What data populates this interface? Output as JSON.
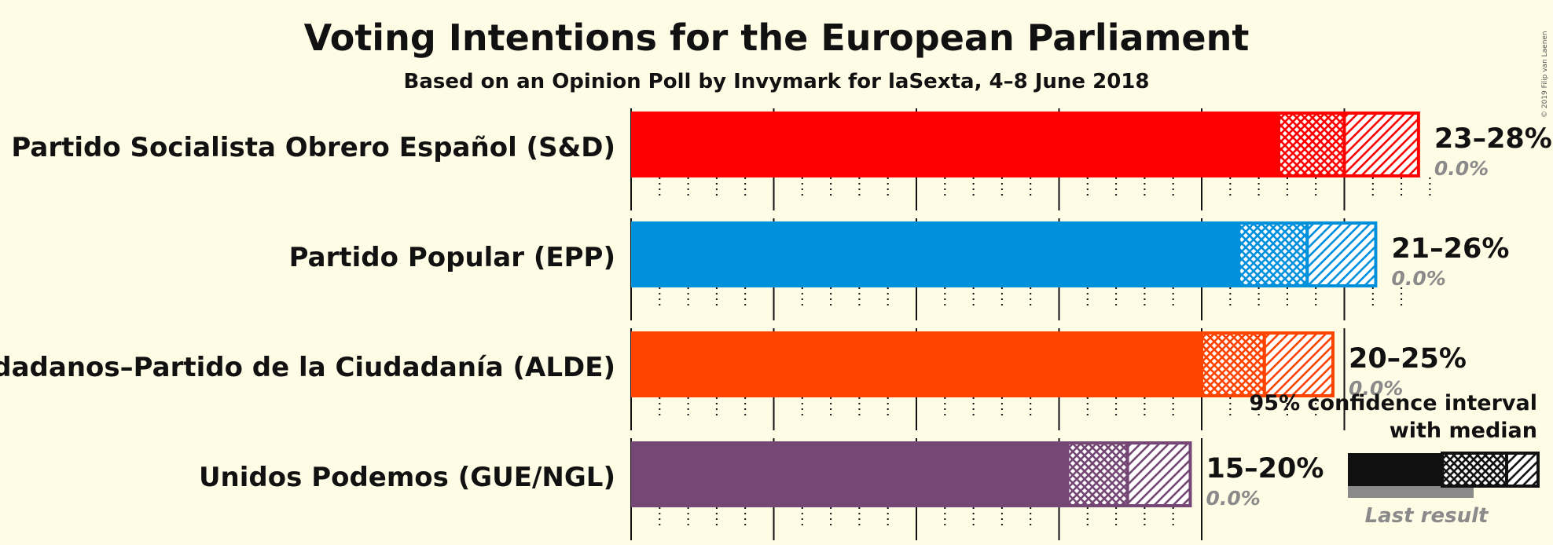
{
  "title": "Voting Intentions for the European Parliament",
  "subtitle": "Based on an Opinion Poll by Invymark for laSexta, 4–8 June 2018",
  "copyright": "© 2019 Filip van Laenen",
  "chart_data": {
    "type": "bar",
    "orientation": "horizontal",
    "title": "Voting Intentions for the European Parliament",
    "subtitle": "Based on an Opinion Poll by Invymark for laSexta, 4–8 June 2018",
    "xlim": [
      0,
      30
    ],
    "major_ticks": [
      0,
      5,
      10,
      15,
      20,
      25
    ],
    "minor_tick_step": 1,
    "categories": [
      "Partido Socialista Obrero Español (S&D)",
      "Partido Popular (EPP)",
      "Ciudadanos–Partido de la Ciudadanía (ALDE)",
      "Unidos Podemos (GUE/NGL)"
    ],
    "series": [
      {
        "party": "Partido Socialista Obrero Español (S&D)",
        "color": "#FF0000",
        "ci_low": 22.7,
        "median": 25.0,
        "ci_high": 27.6,
        "range_label": "23–28%",
        "last_result": 0.0,
        "last_result_label": "0.0%"
      },
      {
        "party": "Partido Popular (EPP)",
        "color": "#0090DC",
        "ci_low": 21.3,
        "median": 23.7,
        "ci_high": 26.1,
        "range_label": "21–26%",
        "last_result": 0.0,
        "last_result_label": "0.0%"
      },
      {
        "party": "Ciudadanos–Partido de la Ciudadanía (ALDE)",
        "color": "#FF4400",
        "ci_low": 20.0,
        "median": 22.2,
        "ci_high": 24.6,
        "range_label": "20–25%",
        "last_result": 0.0,
        "last_result_label": "0.0%"
      },
      {
        "party": "Unidos Podemos (GUE/NGL)",
        "color": "#744775",
        "ci_low": 15.3,
        "median": 17.4,
        "ci_high": 19.6,
        "range_label": "15–20%",
        "last_result": 0.0,
        "last_result_label": "0.0%"
      }
    ],
    "legend": {
      "line1": "95% confidence interval",
      "line2": "with median",
      "last_result": "Last result",
      "placement": "bottom-right"
    }
  }
}
